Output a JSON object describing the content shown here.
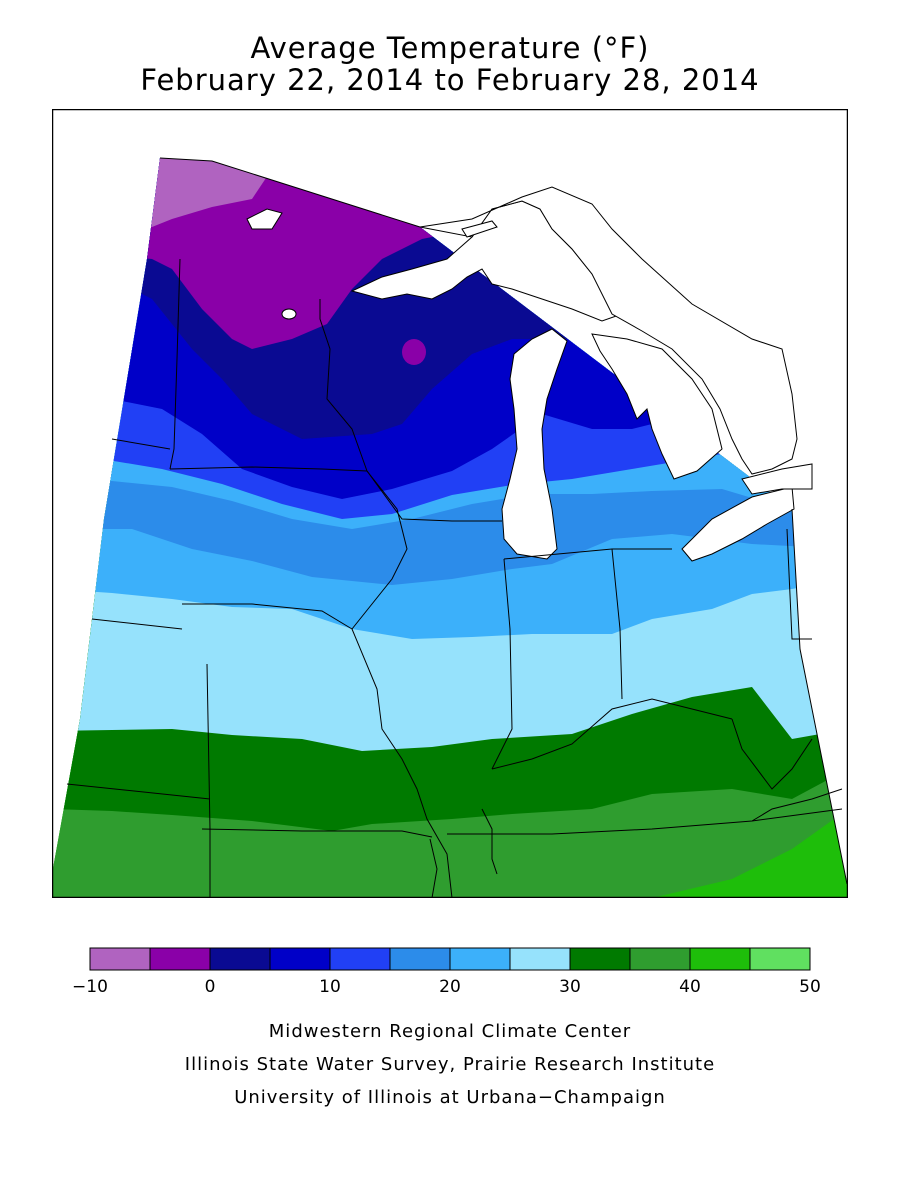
{
  "title": {
    "line1": "Average Temperature (°F)",
    "line2": "February 22, 2014 to February 28, 2014"
  },
  "legend": {
    "bins": [
      {
        "from": -10,
        "to": -5,
        "color": "#b063c0"
      },
      {
        "from": -5,
        "to": 0,
        "color": "#8a00a8"
      },
      {
        "from": 0,
        "to": 5,
        "color": "#0a0a92"
      },
      {
        "from": 5,
        "to": 10,
        "color": "#0000c8"
      },
      {
        "from": 10,
        "to": 15,
        "color": "#2140f5"
      },
      {
        "from": 15,
        "to": 20,
        "color": "#2c8cea"
      },
      {
        "from": 20,
        "to": 25,
        "color": "#3cb0fa"
      },
      {
        "from": 25,
        "to": 30,
        "color": "#96e2fc"
      },
      {
        "from": 30,
        "to": 35,
        "color": "#007a00"
      },
      {
        "from": 35,
        "to": 40,
        "color": "#2f9d2f"
      },
      {
        "from": 40,
        "to": 45,
        "color": "#1ebe0a"
      },
      {
        "from": 45,
        "to": 50,
        "color": "#60e060"
      }
    ],
    "tick_labels": [
      "−10",
      "0",
      "10",
      "20",
      "30",
      "40",
      "50"
    ]
  },
  "credits": {
    "line1": "Midwestern Regional Climate Center",
    "line2": "Illinois State Water Survey, Prairie Research Institute",
    "line3": "University of Illinois at Urbana−Champaign"
  }
}
